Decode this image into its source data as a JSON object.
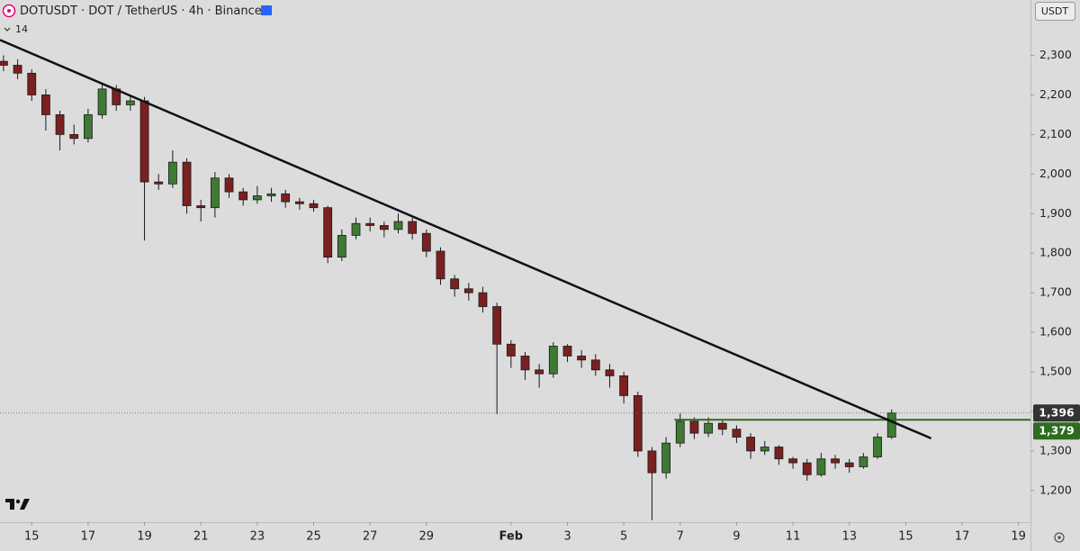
{
  "chart_data": {
    "type": "candlestick",
    "title": "DOTUSDT · DOT / TetherUS · 4h · Binance",
    "indicator_label": "14",
    "currency": "USDT",
    "up_color": "#3f7a34",
    "down_color": "#7a2020",
    "open": [
      2285,
      2275,
      2255,
      2200,
      2150,
      2100,
      2090,
      2150,
      2215,
      2175,
      2185,
      1980,
      1975,
      2030,
      1920,
      1915,
      1990,
      1955,
      1935,
      1945,
      1950,
      1930,
      1925,
      1915,
      1790,
      1845,
      1875,
      1870,
      1860,
      1880,
      1850,
      1805,
      1735,
      1710,
      1700,
      1665,
      1570,
      1540,
      1505,
      1495,
      1565,
      1540,
      1530,
      1505,
      1490,
      1440,
      1300,
      1245,
      1320,
      1375,
      1345,
      1370,
      1355,
      1335,
      1300,
      1310,
      1280,
      1270,
      1240,
      1280,
      1270,
      1260,
      1285,
      1335
    ],
    "high": [
      2300,
      2290,
      2265,
      2215,
      2160,
      2125,
      2165,
      2230,
      2225,
      2200,
      2195,
      2000,
      2060,
      2040,
      1935,
      2005,
      2000,
      1965,
      1970,
      1965,
      1960,
      1940,
      1935,
      1920,
      1860,
      1890,
      1890,
      1880,
      1900,
      1890,
      1860,
      1815,
      1745,
      1725,
      1715,
      1675,
      1580,
      1550,
      1520,
      1575,
      1570,
      1555,
      1545,
      1520,
      1500,
      1450,
      1310,
      1335,
      1395,
      1385,
      1385,
      1380,
      1365,
      1345,
      1325,
      1315,
      1285,
      1280,
      1295,
      1290,
      1280,
      1295,
      1345,
      1405
    ],
    "low": [
      2260,
      2240,
      2185,
      2110,
      2060,
      2075,
      2080,
      2140,
      2160,
      2160,
      1832,
      1960,
      1965,
      1900,
      1880,
      1890,
      1940,
      1920,
      1925,
      1930,
      1915,
      1910,
      1905,
      1775,
      1780,
      1835,
      1855,
      1840,
      1850,
      1835,
      1790,
      1720,
      1690,
      1680,
      1650,
      1393,
      1510,
      1480,
      1460,
      1485,
      1525,
      1510,
      1490,
      1460,
      1420,
      1285,
      1125,
      1230,
      1310,
      1330,
      1335,
      1340,
      1320,
      1280,
      1290,
      1265,
      1255,
      1225,
      1235,
      1255,
      1245,
      1255,
      1280,
      1330
    ],
    "close": [
      2275,
      2255,
      2200,
      2150,
      2100,
      2090,
      2150,
      2215,
      2175,
      2185,
      1980,
      1975,
      2030,
      1920,
      1915,
      1990,
      1955,
      1935,
      1945,
      1950,
      1930,
      1925,
      1915,
      1790,
      1845,
      1875,
      1870,
      1860,
      1880,
      1850,
      1805,
      1735,
      1710,
      1700,
      1665,
      1570,
      1540,
      1505,
      1495,
      1565,
      1540,
      1530,
      1505,
      1490,
      1440,
      1300,
      1245,
      1320,
      1375,
      1345,
      1370,
      1355,
      1335,
      1300,
      1310,
      1280,
      1270,
      1240,
      1280,
      1270,
      1260,
      1285,
      1335,
      1396
    ],
    "xlim": [
      -0.25,
      72.85
    ],
    "xticks": [
      {
        "value": 2,
        "label": "15"
      },
      {
        "value": 6,
        "label": "17"
      },
      {
        "value": 10,
        "label": "19"
      },
      {
        "value": 14,
        "label": "21"
      },
      {
        "value": 18,
        "label": "23"
      },
      {
        "value": 22,
        "label": "25"
      },
      {
        "value": 26,
        "label": "27"
      },
      {
        "value": 30,
        "label": "29"
      },
      {
        "value": 36,
        "label": "Feb"
      },
      {
        "value": 40,
        "label": "3"
      },
      {
        "value": 44,
        "label": "5"
      },
      {
        "value": 48,
        "label": "7"
      },
      {
        "value": 52,
        "label": "9"
      },
      {
        "value": 56,
        "label": "11"
      },
      {
        "value": 60,
        "label": "13"
      },
      {
        "value": 64,
        "label": "15"
      },
      {
        "value": 68,
        "label": "17"
      },
      {
        "value": 72,
        "label": "19"
      }
    ],
    "ylim": [
      1120,
      2440
    ],
    "yticks": [
      {
        "value": 1200,
        "label": "1,200"
      },
      {
        "value": 1300,
        "label": "1,300"
      },
      {
        "value": 1400,
        "label": "1,400"
      },
      {
        "value": 1500,
        "label": "1,500"
      },
      {
        "value": 1600,
        "label": "1,600"
      },
      {
        "value": 1700,
        "label": "1,700"
      },
      {
        "value": 1800,
        "label": "1,800"
      },
      {
        "value": 1900,
        "label": "1,900"
      },
      {
        "value": 2000,
        "label": "2,000"
      },
      {
        "value": 2100,
        "label": "2,100"
      },
      {
        "value": 2200,
        "label": "2,200"
      },
      {
        "value": 2300,
        "label": "2,300"
      }
    ],
    "trendline": {
      "x": [
        -0.25,
        65.8
      ],
      "y": [
        2339,
        1332
      ],
      "color": "#111111"
    },
    "horizontal_line": {
      "x_start": 47.6,
      "value": 1379,
      "label": "1,379",
      "color": "#2e6b1f"
    },
    "last_price": {
      "value": 1396,
      "label": "1,396",
      "color": "#333333"
    }
  }
}
